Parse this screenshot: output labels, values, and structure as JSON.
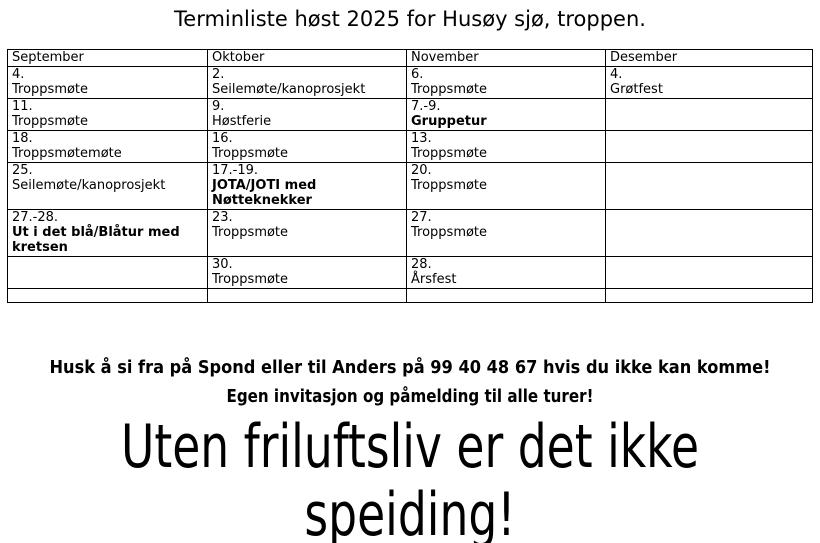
{
  "colors": {
    "background": "#ffffff",
    "text": "#000000",
    "table_border": "#000000"
  },
  "title": "Terminliste høst 2025 for Husøy sjø, troppen.",
  "table": {
    "columns": [
      "September",
      "Oktober",
      "November",
      "Desember"
    ],
    "rows": [
      [
        {
          "date": "4.",
          "event": "Troppsmøte",
          "bold": false
        },
        {
          "date": "2.",
          "event": "Seilemøte/kanoprosjekt",
          "bold": false
        },
        {
          "date": "6.",
          "event": "Troppsmøte",
          "bold": false
        },
        {
          "date": "4.",
          "event": "Grøtfest",
          "bold": false
        }
      ],
      [
        {
          "date": "11.",
          "event": "Troppsmøte",
          "bold": false
        },
        {
          "date": "9.",
          "event": "Høstferie",
          "bold": false
        },
        {
          "date": "7.-9.",
          "event": "Gruppetur",
          "bold": true
        },
        null
      ],
      [
        {
          "date": "18.",
          "event": "Troppsmøtemøte",
          "bold": false
        },
        {
          "date": "16.",
          "event": "Troppsmøte",
          "bold": false
        },
        {
          "date": "13.",
          "event": "Troppsmøte",
          "bold": false
        },
        null
      ],
      [
        {
          "date": "25.",
          "event": "Seilemøte/kanoprosjekt",
          "bold": false
        },
        {
          "date": "17.-19.",
          "event": "JOTA/JOTI med Nøtteknekker",
          "bold": true
        },
        {
          "date": "20.",
          "event": "Troppsmøte",
          "bold": false
        },
        null
      ],
      [
        {
          "date": "27.-28.",
          "event": "Ut i det blå/Blåtur med kretsen",
          "bold": true
        },
        {
          "date": "23.",
          "event": "Troppsmøte",
          "bold": false
        },
        {
          "date": "27.",
          "event": "Troppsmøte",
          "bold": false
        },
        null
      ],
      [
        null,
        {
          "date": "30.",
          "event": "Troppsmøte",
          "bold": false
        },
        {
          "date": "28.",
          "event": "Årsfest",
          "bold": false
        },
        null
      ],
      [
        null,
        null,
        null,
        null
      ]
    ]
  },
  "notes": {
    "line1": "Husk å si fra på Spond eller til Anders på 99 40 48 67 hvis du ikke kan komme!",
    "line2": "Egen invitasjon og påmelding til alle turer!"
  },
  "slogan": {
    "line1": "Uten friluftsliv er det ikke",
    "line2": "speiding!"
  }
}
